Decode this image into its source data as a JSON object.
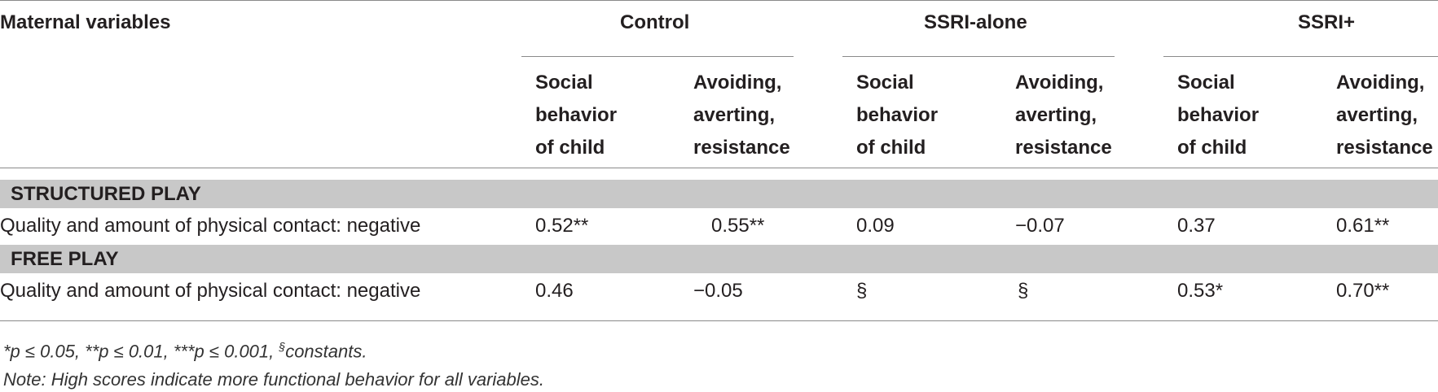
{
  "table": {
    "stub_header": "Maternal variables",
    "groups": [
      "Control",
      "SSRI-alone",
      "SSRI+"
    ],
    "col_header_1": [
      "Social",
      "behavior",
      "of child"
    ],
    "col_header_2": [
      "Avoiding,",
      "averting,",
      "resistance"
    ],
    "sections": [
      {
        "title": "STRUCTURED PLAY",
        "row_label": "Quality and amount of physical contact: negative",
        "values": [
          "0.52**",
          "0.55**",
          "0.09",
          "−0.07",
          "0.37",
          "0.61**"
        ]
      },
      {
        "title": "FREE PLAY",
        "row_label": "Quality and amount of physical contact: negative",
        "values": [
          "0.46",
          "−0.05",
          "§",
          "§",
          "0.53*",
          "0.70**"
        ]
      }
    ]
  },
  "footnotes": {
    "sig_p05": "*p ≤ 0.05,",
    "sig_p01": "**p ≤ 0.01,",
    "sig_p001": "***p ≤ 0.001,",
    "constants_symbol": "§",
    "constants_label": "constants.",
    "note": "Note: High scores indicate more functional behavior for all variables."
  }
}
